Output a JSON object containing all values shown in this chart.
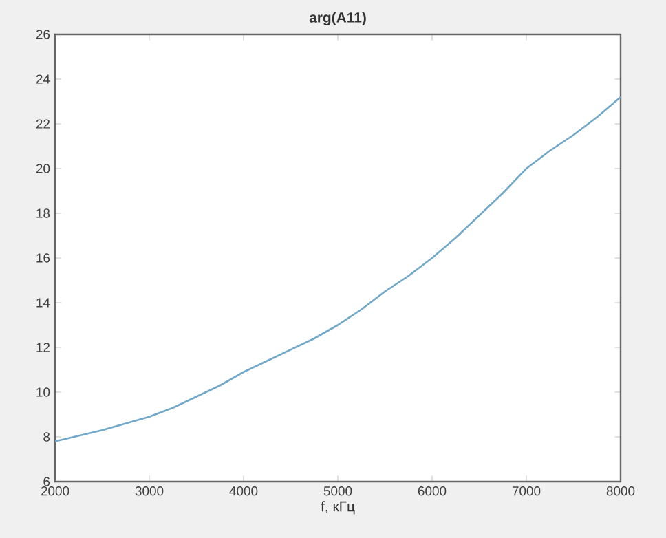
{
  "chart_data": {
    "type": "line",
    "title": "arg(A11)",
    "xlabel": "f, кГц",
    "x": [
      2000,
      2250,
      2500,
      2750,
      3000,
      3250,
      3500,
      3750,
      4000,
      4250,
      4500,
      4750,
      5000,
      5250,
      5500,
      5750,
      6000,
      6250,
      6500,
      6750,
      7000,
      7250,
      7500,
      7750,
      8000
    ],
    "series": [
      {
        "color": "#6fa8c8",
        "values": [
          7.8,
          8.05,
          8.3,
          8.6,
          8.9,
          9.3,
          9.8,
          10.3,
          10.9,
          11.4,
          11.9,
          12.4,
          13.0,
          13.7,
          14.5,
          15.2,
          16.0,
          16.9,
          17.9,
          18.9,
          20.0,
          20.8,
          21.5,
          22.3,
          23.2
        ]
      }
    ],
    "xlim": [
      2000,
      8000
    ],
    "ylim": [
      6,
      26
    ],
    "xticks": [
      2000,
      3000,
      4000,
      5000,
      6000,
      7000,
      8000
    ],
    "yticks": [
      6,
      8,
      10,
      12,
      14,
      16,
      18,
      20,
      22,
      24,
      26
    ],
    "grid": false,
    "marker": "none",
    "line_style": "solid"
  }
}
